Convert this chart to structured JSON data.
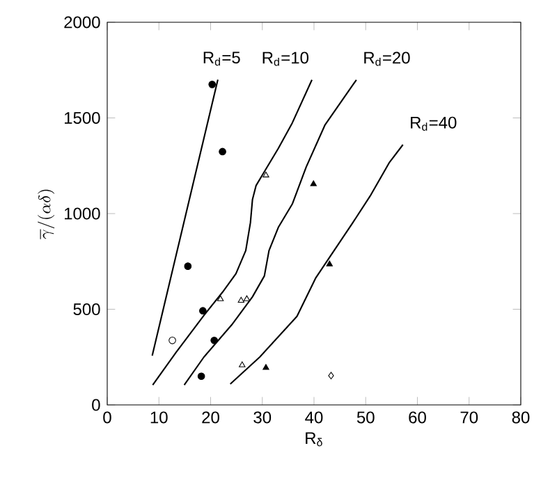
{
  "chart_data": {
    "type": "line",
    "xlabel": "R$_{δ}$",
    "ylabel": "\\overline{\\gamma}/(\\alpha\\delta)",
    "xlim": [
      0,
      80
    ],
    "ylim": [
      0,
      2000
    ],
    "xticks": [
      0,
      10,
      20,
      30,
      40,
      50,
      60,
      70,
      80
    ],
    "yticks": [
      0,
      500,
      1000,
      1500,
      2000
    ],
    "grid": false,
    "legend": false,
    "marker": "none",
    "line_style": "solid",
    "series": [
      {
        "name": "R$_{d}$=5",
        "color": "#000000",
        "x": [
          8.7,
          21.4
        ],
        "values": [
          257,
          1700
        ]
      },
      {
        "name": "R$_{d}$=10",
        "color": "#000000",
        "x": [
          8.8,
          13.3,
          18.7,
          22.3,
          24.9,
          26.8,
          27.7,
          28.1,
          28.8,
          30.4,
          33.1,
          35.8,
          39.6
        ],
        "values": [
          104,
          274,
          468,
          589,
          686,
          807,
          952,
          1074,
          1147,
          1219,
          1341,
          1474,
          1699
        ]
      },
      {
        "name": "R$_{d}$=20",
        "color": "#000000",
        "x": [
          14.9,
          18.7,
          24.1,
          28.1,
          30.4,
          31.3,
          33.1,
          35.8,
          38.5,
          42.1,
          48.2
        ],
        "values": [
          104,
          250,
          419,
          565,
          674,
          807,
          928,
          1050,
          1244,
          1462,
          1699
        ]
      },
      {
        "name": "R$_{d}$=40",
        "color": "#000000",
        "x": [
          23.8,
          29.5,
          36.7,
          40.3,
          43.9,
          47.5,
          51.0,
          54.6,
          57.2
        ],
        "values": [
          109,
          250,
          463,
          662,
          807,
          952,
          1098,
          1268,
          1360
        ]
      },
      {
        "type": "scatter",
        "marker": "circle",
        "color": "#000000",
        "x": [
          20.3,
          22.3,
          15.6,
          18.5,
          20.7,
          18.2
        ],
        "values": [
          1675,
          1324,
          725,
          492,
          337,
          150
        ]
      },
      {
        "type": "scatter",
        "marker": "circle",
        "color": "#ffffff",
        "x": [
          12.6
        ],
        "values": [
          337
        ]
      },
      {
        "type": "scatter",
        "marker": "triangle",
        "color": "#ffffff",
        "x": [
          30.7,
          21.9,
          25.9,
          27.0,
          26.1
        ],
        "values": [
          1200,
          553,
          545,
          553,
          208
        ]
      },
      {
        "type": "scatter",
        "marker": "triangle",
        "color": "#000000",
        "x": [
          39.9,
          30.7,
          43.0
        ],
        "values": [
          1154,
          194,
          735
        ]
      },
      {
        "type": "scatter",
        "marker": "diamond",
        "color": "#ffffff",
        "x": [
          43.3
        ],
        "values": [
          153
        ]
      }
    ]
  }
}
